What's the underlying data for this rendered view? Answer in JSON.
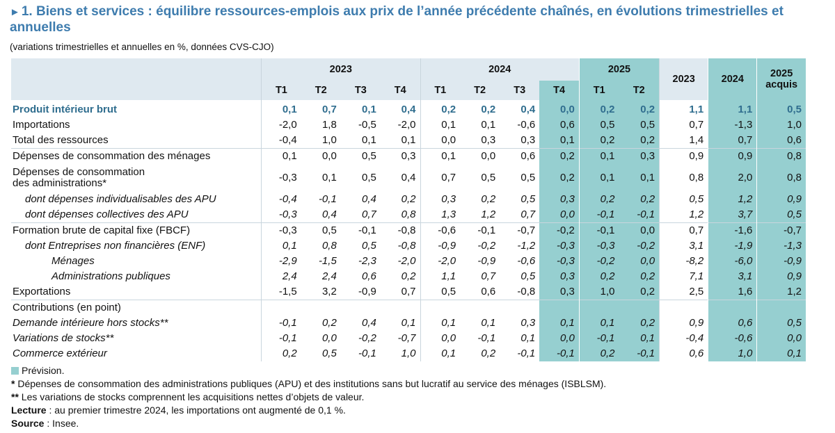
{
  "title": {
    "marker": "►",
    "text": "1. Biens et services : équilibre ressources-emplois aux prix de l’année précédente chaînés, en évolutions trimestrielles et annuelles"
  },
  "subtitle": "(variations trimestrielles et annuelles en %, données CVS-CJO)",
  "header": {
    "year_2023": "2023",
    "year_2024": "2024",
    "year_2025": "2025",
    "annual_2023": "2023",
    "annual_2024": "2024",
    "annual_2025_line1": "2025",
    "annual_2025_line2": "acquis",
    "quarters": [
      "T1",
      "T2",
      "T3",
      "T4",
      "T1",
      "T2",
      "T3",
      "T4",
      "T1",
      "T2"
    ]
  },
  "rows": [
    {
      "label": "Produit intérieur brut",
      "values": [
        "0,1",
        "0,7",
        "0,1",
        "0,4",
        "0,2",
        "0,2",
        "0,4",
        "0,0",
        "0,2",
        "0,2",
        "1,1",
        "1,1",
        "0,5"
      ]
    },
    {
      "label": "Importations",
      "values": [
        "-2,0",
        "1,8",
        "-0,5",
        "-2,0",
        "0,1",
        "0,1",
        "-0,6",
        "0,6",
        "0,5",
        "0,5",
        "0,7",
        "-1,3",
        "1,0"
      ]
    },
    {
      "label": "Total des ressources",
      "values": [
        "-0,4",
        "1,0",
        "0,1",
        "0,1",
        "0,0",
        "0,3",
        "0,3",
        "0,1",
        "0,2",
        "0,2",
        "1,4",
        "0,7",
        "0,6"
      ]
    },
    {
      "label": "Dépenses de consommation des ménages",
      "values": [
        "0,1",
        "0,0",
        "0,5",
        "0,3",
        "0,1",
        "0,0",
        "0,6",
        "0,2",
        "0,1",
        "0,3",
        "0,9",
        "0,9",
        "0,8"
      ]
    },
    {
      "label_line1": "Dépenses de consommation",
      "label_line2": "des administrations*",
      "values": [
        "-0,3",
        "0,1",
        "0,5",
        "0,4",
        "0,7",
        "0,5",
        "0,5",
        "0,2",
        "0,1",
        "0,1",
        "0,8",
        "2,0",
        "0,8"
      ]
    },
    {
      "label": "dont dépenses individualisables des APU",
      "values": [
        "-0,4",
        "-0,1",
        "0,4",
        "0,2",
        "0,3",
        "0,2",
        "0,5",
        "0,3",
        "0,2",
        "0,2",
        "0,5",
        "1,2",
        "0,9"
      ]
    },
    {
      "label": "dont dépenses collectives des APU",
      "values": [
        "-0,3",
        "0,4",
        "0,7",
        "0,8",
        "1,3",
        "1,2",
        "0,7",
        "0,0",
        "-0,1",
        "-0,1",
        "1,2",
        "3,7",
        "0,5"
      ]
    },
    {
      "label": "Formation brute de capital fixe (FBCF)",
      "values": [
        "-0,3",
        "0,5",
        "-0,1",
        "-0,8",
        "-0,6",
        "-0,1",
        "-0,7",
        "-0,2",
        "-0,1",
        "0,0",
        "0,7",
        "-1,6",
        "-0,7"
      ]
    },
    {
      "label": "dont Entreprises non financières (ENF)",
      "values": [
        "0,1",
        "0,8",
        "0,5",
        "-0,8",
        "-0,9",
        "-0,2",
        "-1,2",
        "-0,3",
        "-0,3",
        "-0,2",
        "3,1",
        "-1,9",
        "-1,3"
      ]
    },
    {
      "label": "Ménages",
      "values": [
        "-2,9",
        "-1,5",
        "-2,3",
        "-2,0",
        "-2,0",
        "-0,9",
        "-0,6",
        "-0,3",
        "-0,2",
        "0,0",
        "-8,2",
        "-6,0",
        "-0,9"
      ]
    },
    {
      "label": "Administrations publiques",
      "values": [
        "2,4",
        "2,4",
        "0,6",
        "0,2",
        "1,1",
        "0,7",
        "0,5",
        "0,3",
        "0,2",
        "0,2",
        "7,1",
        "3,1",
        "0,9"
      ]
    },
    {
      "label": "Exportations",
      "values": [
        "-1,5",
        "3,2",
        "-0,9",
        "0,7",
        "0,5",
        "0,6",
        "-0,8",
        "0,3",
        "1,0",
        "0,2",
        "2,5",
        "1,6",
        "1,2"
      ]
    },
    {
      "label": "Contributions (en point)"
    },
    {
      "label": "Demande intérieure hors stocks**",
      "values": [
        "-0,1",
        "0,2",
        "0,4",
        "0,1",
        "0,1",
        "0,1",
        "0,3",
        "0,1",
        "0,1",
        "0,2",
        "0,9",
        "0,6",
        "0,5"
      ]
    },
    {
      "label": "Variations de stocks**",
      "values": [
        "-0,1",
        "0,0",
        "-0,2",
        "-0,7",
        "0,0",
        "-0,1",
        "0,1",
        "0,0",
        "-0,1",
        "0,1",
        "-0,4",
        "-0,6",
        "0,0"
      ]
    },
    {
      "label": "Commerce extérieur",
      "values": [
        "0,2",
        "0,5",
        "-0,1",
        "1,0",
        "0,1",
        "0,2",
        "-0,1",
        "-0,1",
        "0,2",
        "-0,1",
        "0,6",
        "1,0",
        "0,1"
      ]
    }
  ],
  "notes": {
    "legend": "Prévision.",
    "note1_marker": "*",
    "note1": " Dépenses de consommation des administrations publiques (APU) et des institutions sans but lucratif au service des ménages (ISBLSM).",
    "note2_marker": "**",
    "note2": " Les variations de stocks comprennent les acquisitions nettes d’objets de valeur.",
    "lecture_label": "Lecture",
    "lecture": " : au premier trimestre 2024, les importations ont augmenté de 0,1 %.",
    "source_label": "Source",
    "source": " : Insee."
  },
  "colors": {
    "title": "#3e7cae",
    "header_bg": "#dfe9f0",
    "forecast_bg": "#96cfd0",
    "pib_text": "#2f6d8e"
  }
}
